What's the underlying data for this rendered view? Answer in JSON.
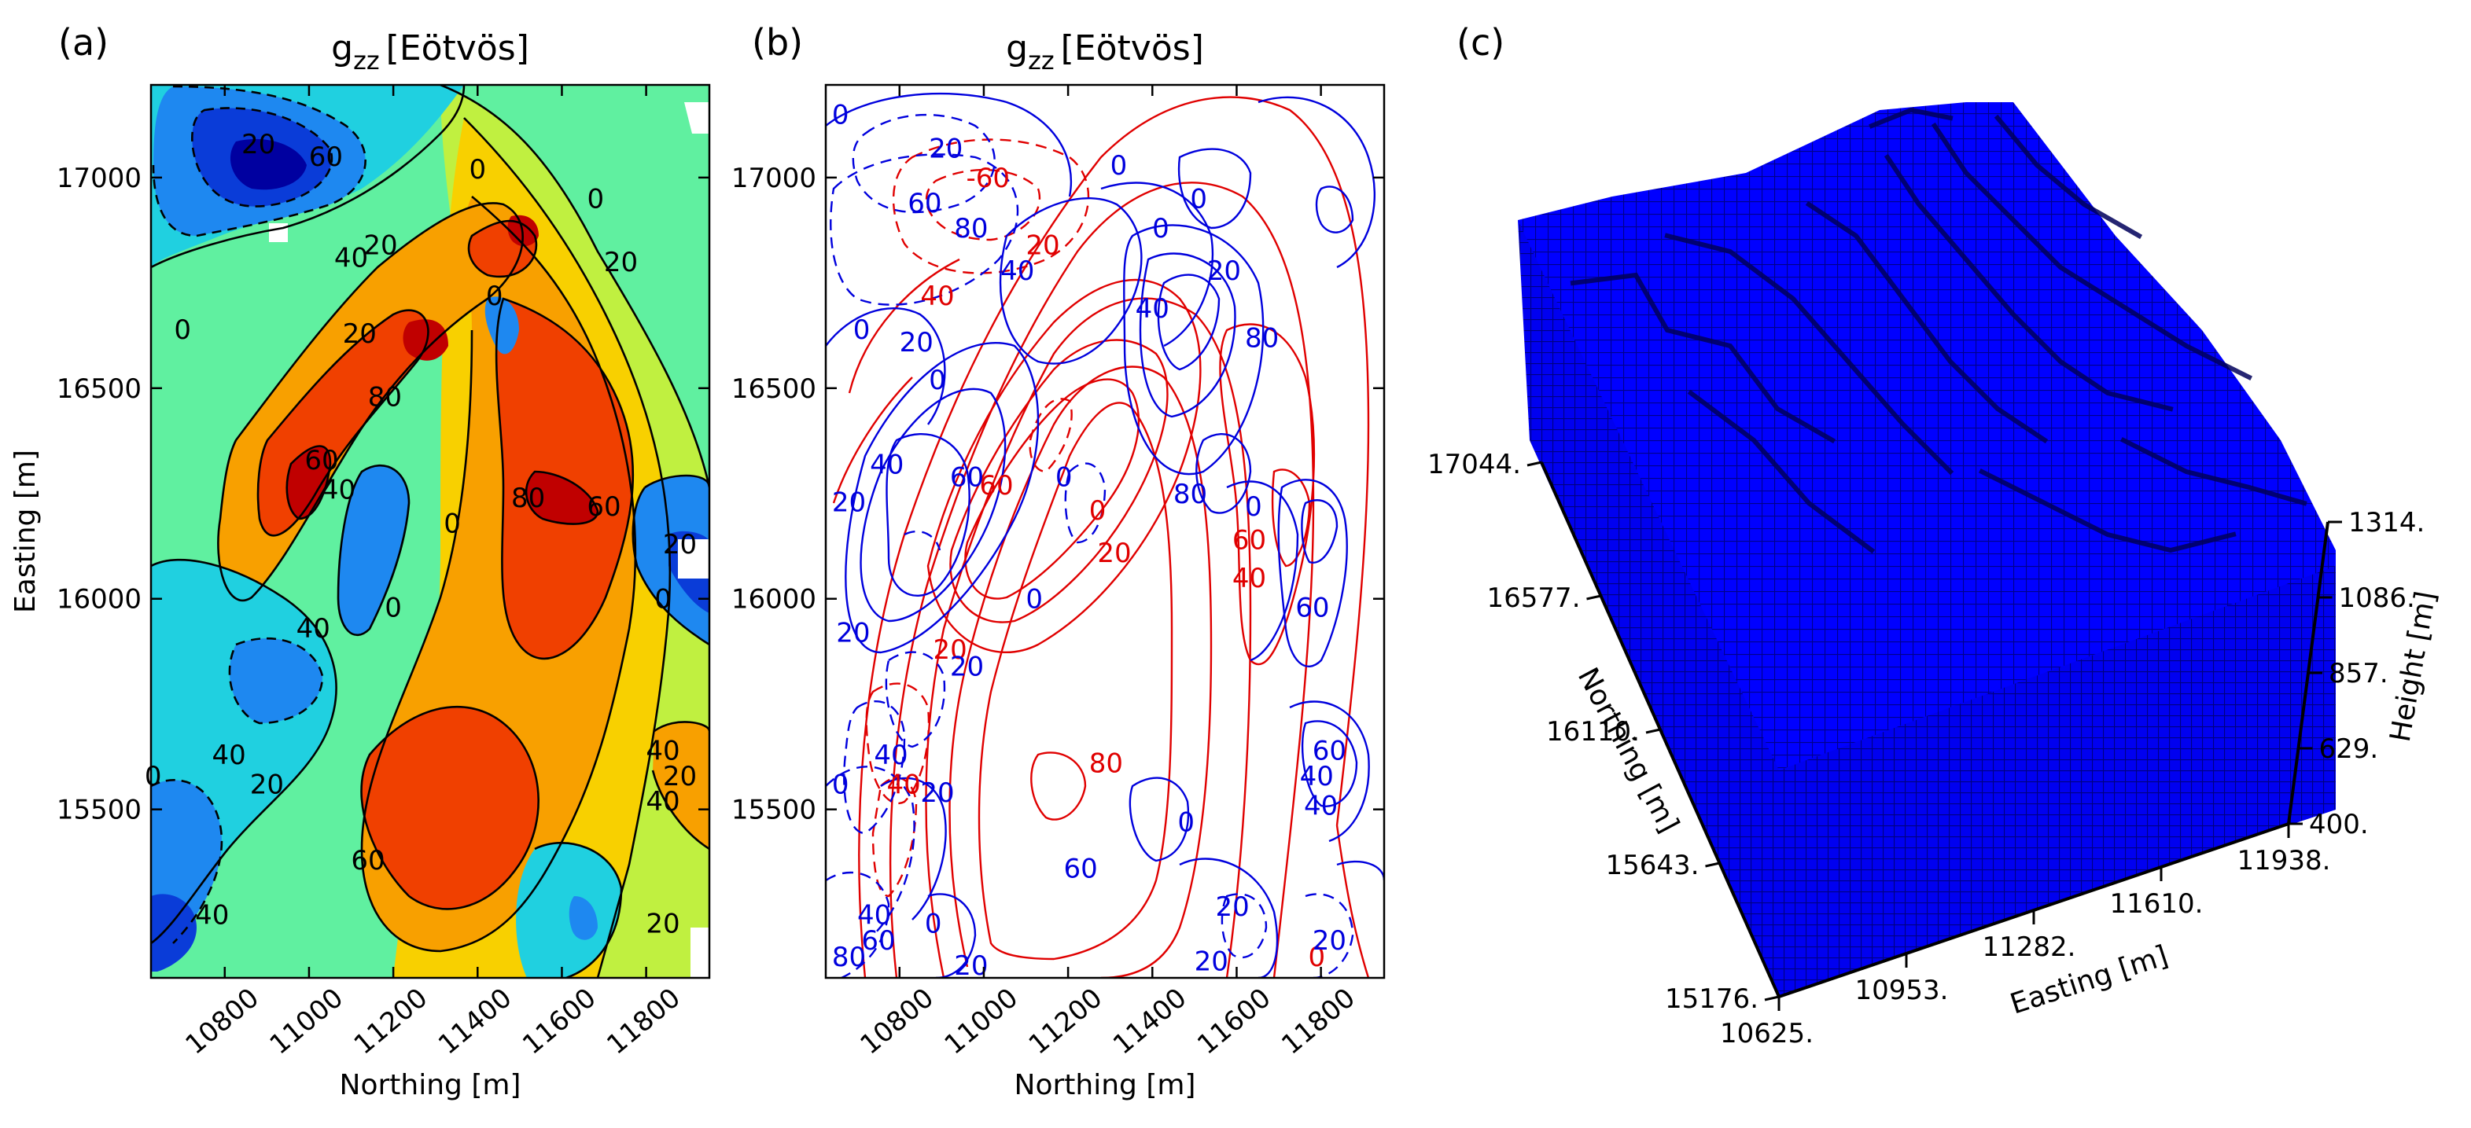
{
  "panels": {
    "a": "(a)",
    "b": "(b)",
    "c": "(c)"
  },
  "chart_data": [
    {
      "panel": "(a)",
      "type": "heatmap",
      "title": "g_zz [Eötvös]",
      "title_main": "g",
      "title_sub": "zz",
      "title_unit": "[Eötvös]",
      "xlabel": "Northing [m]",
      "ylabel": "Easting [m]",
      "xlim": [
        10625,
        11950
      ],
      "ylim": [
        15100,
        17220
      ],
      "xticks": [
        10800,
        11000,
        11200,
        11400,
        11600,
        11800
      ],
      "yticks": [
        15500,
        16000,
        16500,
        17000
      ],
      "levels": [
        -60,
        -40,
        -20,
        0,
        20,
        40,
        60,
        80
      ],
      "colormap": [
        "#0000a0",
        "#0a3cd8",
        "#1e88f0",
        "#20d0e0",
        "#60f0a0",
        "#c0f040",
        "#f8d000",
        "#f8a000",
        "#f04000",
        "#c00000"
      ],
      "contour_labels": [
        {
          "text": "60",
          "x": 11040,
          "y": 17050
        },
        {
          "text": "20",
          "x": 10880,
          "y": 17080
        },
        {
          "text": "40",
          "x": 11100,
          "y": 16810
        },
        {
          "text": "20",
          "x": 11170,
          "y": 16840
        },
        {
          "text": "0",
          "x": 11400,
          "y": 17020
        },
        {
          "text": "0",
          "x": 11680,
          "y": 16950
        },
        {
          "text": "20",
          "x": 11740,
          "y": 16800
        },
        {
          "text": "0",
          "x": 10700,
          "y": 16640
        },
        {
          "text": "0",
          "x": 11440,
          "y": 16720
        },
        {
          "text": "80",
          "x": 11180,
          "y": 16480
        },
        {
          "text": "20",
          "x": 11120,
          "y": 16630
        },
        {
          "text": "40",
          "x": 11070,
          "y": 16260
        },
        {
          "text": "60",
          "x": 11030,
          "y": 16330
        },
        {
          "text": "80",
          "x": 11520,
          "y": 16240
        },
        {
          "text": "60",
          "x": 11700,
          "y": 16220
        },
        {
          "text": "0",
          "x": 11340,
          "y": 16180
        },
        {
          "text": "0",
          "x": 11200,
          "y": 15980
        },
        {
          "text": "20",
          "x": 11880,
          "y": 16130
        },
        {
          "text": "0",
          "x": 11840,
          "y": 16000
        },
        {
          "text": "40",
          "x": 11010,
          "y": 15930
        },
        {
          "text": "40",
          "x": 10810,
          "y": 15630
        },
        {
          "text": "20",
          "x": 10900,
          "y": 15560
        },
        {
          "text": "0",
          "x": 10630,
          "y": 15580
        },
        {
          "text": "40",
          "x": 11840,
          "y": 15640
        },
        {
          "text": "20",
          "x": 11880,
          "y": 15580
        },
        {
          "text": "40",
          "x": 11840,
          "y": 15520
        },
        {
          "text": "60",
          "x": 11140,
          "y": 15380
        },
        {
          "text": "40",
          "x": 10770,
          "y": 15250
        },
        {
          "text": "20",
          "x": 11840,
          "y": 15230
        }
      ]
    },
    {
      "panel": "(b)",
      "type": "line",
      "title": "g_zz [Eötvös]",
      "title_main": "g",
      "title_sub": "zz",
      "title_unit": "[Eötvös]",
      "xlabel": "Northing [m]",
      "ylabel": "",
      "xlim": [
        10625,
        11950
      ],
      "ylim": [
        15100,
        17220
      ],
      "xticks": [
        10800,
        11000,
        11200,
        11400,
        11600,
        11800
      ],
      "yticks": [
        15500,
        16000,
        16500,
        17000
      ],
      "series_colors": [
        "#0000dd",
        "#e00000"
      ],
      "contour_labels": [
        {
          "text": "-60",
          "x": 11010,
          "y": 17000,
          "color": "#e00000"
        },
        {
          "text": "40",
          "x": 10890,
          "y": 16720,
          "color": "#e00000"
        },
        {
          "text": "20",
          "x": 11140,
          "y": 16840,
          "color": "#e00000"
        },
        {
          "text": "60",
          "x": 11030,
          "y": 16270,
          "color": "#e00000"
        },
        {
          "text": "0",
          "x": 11270,
          "y": 16210,
          "color": "#e00000"
        },
        {
          "text": "20",
          "x": 11310,
          "y": 16110,
          "color": "#e00000"
        },
        {
          "text": "60",
          "x": 11630,
          "y": 16140,
          "color": "#e00000"
        },
        {
          "text": "40",
          "x": 11630,
          "y": 16050,
          "color": "#e00000"
        },
        {
          "text": "20",
          "x": 10920,
          "y": 15880,
          "color": "#e00000"
        },
        {
          "text": "80",
          "x": 11290,
          "y": 15610,
          "color": "#e00000"
        },
        {
          "text": "40",
          "x": 10810,
          "y": 15560,
          "color": "#e00000"
        },
        {
          "text": "0",
          "x": 11790,
          "y": 15150,
          "color": "#e00000"
        },
        {
          "text": "0",
          "x": 10660,
          "y": 17150,
          "color": "#0000dd"
        },
        {
          "text": "20",
          "x": 10910,
          "y": 17070,
          "color": "#0000dd"
        },
        {
          "text": "60",
          "x": 10860,
          "y": 16940,
          "color": "#0000dd"
        },
        {
          "text": "80",
          "x": 10970,
          "y": 16880,
          "color": "#0000dd"
        },
        {
          "text": "40",
          "x": 11080,
          "y": 16780,
          "color": "#0000dd"
        },
        {
          "text": "0",
          "x": 11320,
          "y": 17030,
          "color": "#0000dd"
        },
        {
          "text": "0",
          "x": 11420,
          "y": 16880,
          "color": "#0000dd"
        },
        {
          "text": "20",
          "x": 11570,
          "y": 16780,
          "color": "#0000dd"
        },
        {
          "text": "0",
          "x": 11510,
          "y": 16950,
          "color": "#0000dd"
        },
        {
          "text": "0",
          "x": 10710,
          "y": 16640,
          "color": "#0000dd"
        },
        {
          "text": "20",
          "x": 10840,
          "y": 16610,
          "color": "#0000dd"
        },
        {
          "text": "0",
          "x": 10890,
          "y": 16520,
          "color": "#0000dd"
        },
        {
          "text": "40",
          "x": 11400,
          "y": 16690,
          "color": "#0000dd"
        },
        {
          "text": "80",
          "x": 11660,
          "y": 16620,
          "color": "#0000dd"
        },
        {
          "text": "40",
          "x": 10770,
          "y": 16320,
          "color": "#0000dd"
        },
        {
          "text": "20",
          "x": 10680,
          "y": 16230,
          "color": "#0000dd"
        },
        {
          "text": "60",
          "x": 10960,
          "y": 16290,
          "color": "#0000dd"
        },
        {
          "text": "0",
          "x": 11190,
          "y": 16290,
          "color": "#0000dd"
        },
        {
          "text": "80",
          "x": 11490,
          "y": 16250,
          "color": "#0000dd"
        },
        {
          "text": "0",
          "x": 11640,
          "y": 16220,
          "color": "#0000dd"
        },
        {
          "text": "0",
          "x": 11120,
          "y": 16000,
          "color": "#0000dd"
        },
        {
          "text": "20",
          "x": 10690,
          "y": 15920,
          "color": "#0000dd"
        },
        {
          "text": "20",
          "x": 10960,
          "y": 15840,
          "color": "#0000dd"
        },
        {
          "text": "60",
          "x": 11780,
          "y": 15980,
          "color": "#0000dd"
        },
        {
          "text": "40",
          "x": 10780,
          "y": 15630,
          "color": "#0000dd"
        },
        {
          "text": "20",
          "x": 10890,
          "y": 15540,
          "color": "#0000dd"
        },
        {
          "text": "0",
          "x": 10660,
          "y": 15560,
          "color": "#0000dd"
        },
        {
          "text": "60",
          "x": 11820,
          "y": 15640,
          "color": "#0000dd"
        },
        {
          "text": "40",
          "x": 11790,
          "y": 15580,
          "color": "#0000dd"
        },
        {
          "text": "40",
          "x": 11800,
          "y": 15510,
          "color": "#0000dd"
        },
        {
          "text": "0",
          "x": 11480,
          "y": 15470,
          "color": "#0000dd"
        },
        {
          "text": "60",
          "x": 11230,
          "y": 15360,
          "color": "#0000dd"
        },
        {
          "text": "40",
          "x": 10740,
          "y": 15250,
          "color": "#0000dd"
        },
        {
          "text": "0",
          "x": 10880,
          "y": 15230,
          "color": "#0000dd"
        },
        {
          "text": "60",
          "x": 10750,
          "y": 15190,
          "color": "#0000dd"
        },
        {
          "text": "80",
          "x": 10680,
          "y": 15150,
          "color": "#0000dd"
        },
        {
          "text": "20",
          "x": 10970,
          "y": 15130,
          "color": "#0000dd"
        },
        {
          "text": "20",
          "x": 11590,
          "y": 15270,
          "color": "#0000dd"
        },
        {
          "text": "20",
          "x": 11540,
          "y": 15140,
          "color": "#0000dd"
        },
        {
          "text": "20",
          "x": 11820,
          "y": 15190,
          "color": "#0000dd"
        }
      ]
    },
    {
      "panel": "(c)",
      "type": "other",
      "title": "",
      "xlabel": "Easting [m]",
      "ylabel": "Northing [m]",
      "zlabel": "Height [m]",
      "easting_ticks": [
        "10625.",
        "10953.",
        "11282.",
        "11610.",
        "11938."
      ],
      "northing_ticks": [
        "17044.",
        "16577.",
        "16110.",
        "15643.",
        "15176."
      ],
      "height_ticks": [
        "400.",
        "629.",
        "857.",
        "1086.",
        "1314."
      ],
      "color": "#0000ff"
    }
  ]
}
